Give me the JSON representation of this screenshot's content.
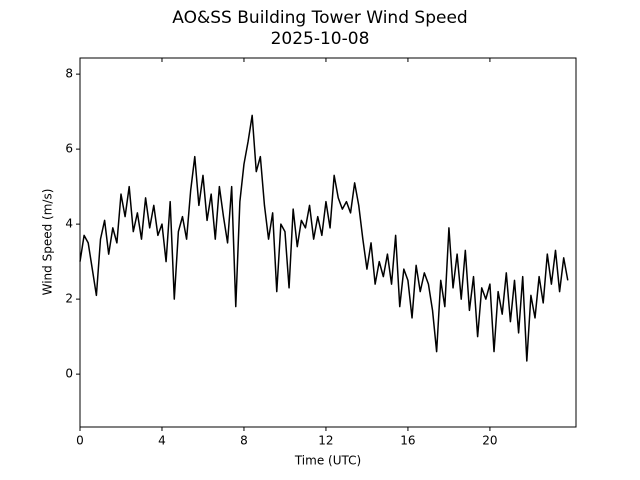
{
  "chart_data": {
    "type": "line",
    "title": "AO&SS Building Tower Wind Speed",
    "subtitle": "2025-10-08",
    "x_label": "Time (UTC)",
    "y_label": "Wind Speed (m/s)",
    "color": "#000000",
    "xlim": [
      0,
      24.2
    ],
    "xticks": [
      0,
      4,
      8,
      12,
      16,
      20
    ],
    "ylim": [
      -1.41,
      8.43
    ],
    "yticks": [
      0,
      2,
      4,
      6,
      8
    ],
    "x": [
      0,
      0.2,
      0.4,
      0.6,
      0.8,
      1,
      1.2,
      1.4,
      1.6,
      1.8,
      2,
      2.2,
      2.4,
      2.6,
      2.8,
      3,
      3.2,
      3.4,
      3.6,
      3.8,
      4,
      4.2,
      4.4,
      4.6,
      4.8,
      5,
      5.2,
      5.4,
      5.6,
      5.8,
      6,
      6.2,
      6.4,
      6.6,
      6.8,
      7,
      7.2,
      7.4,
      7.6,
      7.8,
      8,
      8.2,
      8.4,
      8.6,
      8.8,
      9,
      9.2,
      9.4,
      9.6,
      9.8,
      10,
      10.2,
      10.4,
      10.6,
      10.8,
      11,
      11.2,
      11.4,
      11.6,
      11.8,
      12,
      12.2,
      12.4,
      12.6,
      12.8,
      13,
      13.2,
      13.4,
      13.6,
      13.8,
      14,
      14.2,
      14.4,
      14.6,
      14.8,
      15,
      15.2,
      15.4,
      15.6,
      15.8,
      16,
      16.2,
      16.4,
      16.6,
      16.8,
      17,
      17.2,
      17.4,
      17.6,
      17.8,
      18,
      18.2,
      18.4,
      18.6,
      18.8,
      19,
      19.2,
      19.4,
      19.6,
      19.8,
      20,
      20.2,
      20.4,
      20.6,
      20.8,
      21,
      21.2,
      21.4,
      21.6,
      21.8,
      22,
      22.2,
      22.4,
      22.6,
      22.8,
      23,
      23.2,
      23.4,
      23.6,
      23.8
    ],
    "values": [
      3.0,
      3.7,
      3.5,
      2.8,
      2.1,
      3.6,
      4.1,
      3.2,
      3.9,
      3.5,
      4.8,
      4.2,
      5.0,
      3.8,
      4.3,
      3.6,
      4.7,
      3.9,
      4.5,
      3.7,
      4.0,
      3.0,
      4.6,
      2.0,
      3.8,
      4.2,
      3.6,
      4.9,
      5.8,
      4.5,
      5.3,
      4.1,
      4.8,
      3.6,
      5.0,
      4.2,
      3.5,
      5.0,
      1.8,
      4.6,
      5.6,
      6.2,
      6.9,
      5.4,
      5.8,
      4.5,
      3.6,
      4.3,
      2.2,
      4.0,
      3.8,
      2.3,
      4.4,
      3.4,
      4.1,
      3.9,
      4.5,
      3.6,
      4.2,
      3.7,
      4.6,
      3.9,
      5.3,
      4.7,
      4.4,
      4.6,
      4.3,
      5.1,
      4.5,
      3.6,
      2.8,
      3.5,
      2.4,
      3.0,
      2.6,
      3.2,
      2.4,
      3.7,
      1.8,
      2.8,
      2.5,
      1.5,
      2.9,
      2.2,
      2.7,
      2.4,
      1.7,
      0.6,
      2.5,
      1.8,
      3.9,
      2.3,
      3.2,
      2.0,
      3.3,
      1.7,
      2.6,
      1.0,
      2.3,
      2.0,
      2.4,
      0.6,
      2.2,
      1.6,
      2.7,
      1.4,
      2.5,
      1.1,
      2.6,
      0.35,
      2.1,
      1.5,
      2.6,
      1.9,
      3.2,
      2.4,
      3.3,
      2.2,
      3.1,
      2.5
    ]
  }
}
